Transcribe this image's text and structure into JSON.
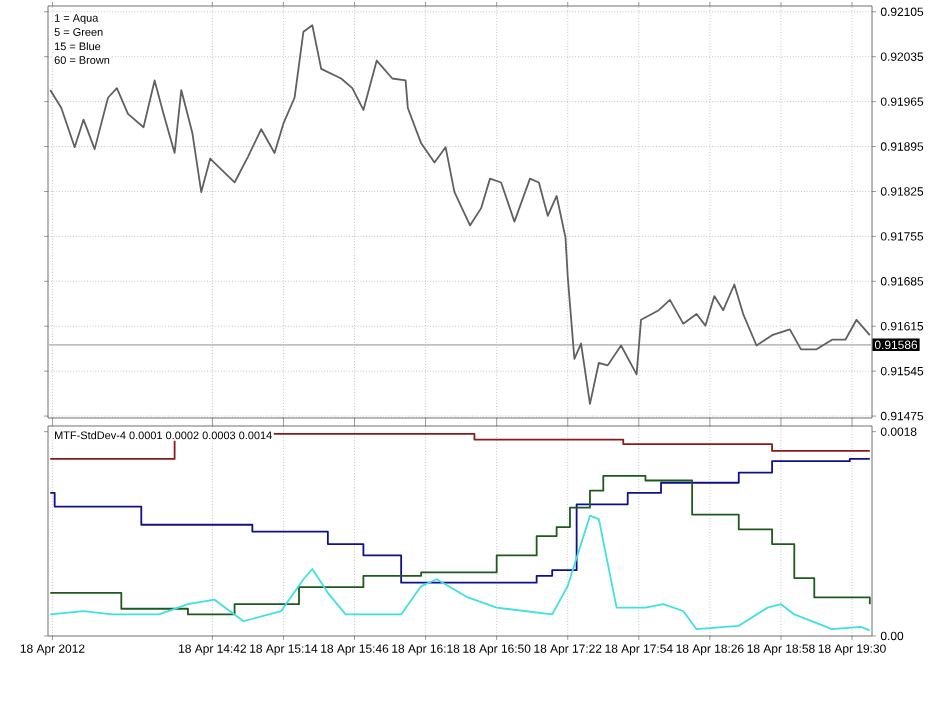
{
  "chart_data": [
    {
      "type": "line",
      "annotations": [
        "1 = Aqua",
        "5 = Green",
        "15 = Blue",
        "60 = Brown"
      ],
      "xlim": [
        "2012-04-18T13:28",
        "2012-04-18T19:39"
      ],
      "ylim": [
        0.91472,
        0.92114
      ],
      "xticks": [
        {
          "value": "2012-04-18T13:30",
          "label": null
        },
        {
          "value": "2012-04-18T14:42",
          "label": null
        },
        {
          "value": "2012-04-18T15:14",
          "label": null
        },
        {
          "value": "2012-04-18T15:46",
          "label": null
        },
        {
          "value": "2012-04-18T16:18",
          "label": null
        },
        {
          "value": "2012-04-18T16:50",
          "label": null
        },
        {
          "value": "2012-04-18T17:22",
          "label": null
        },
        {
          "value": "2012-04-18T17:54",
          "label": null
        },
        {
          "value": "2012-04-18T18:26",
          "label": null
        },
        {
          "value": "2012-04-18T18:58",
          "label": null
        },
        {
          "value": "2012-04-18T19:30",
          "label": null
        }
      ],
      "yticks": [
        0.92105,
        0.92035,
        0.91965,
        0.91895,
        0.91825,
        0.91755,
        0.91685,
        0.91615,
        0.91545,
        0.91475
      ],
      "tick_labels": "y",
      "grid": true,
      "ref_lines": [
        {
          "axis": "y",
          "value": 0.91586,
          "label": "0.91586",
          "color": "#c0c0c0"
        }
      ],
      "series": [
        {
          "color": "#606060",
          "x": [
            "2012-04-18T13:29",
            "2012-04-18T13:34",
            "2012-04-18T13:40",
            "2012-04-18T13:44",
            "2012-04-18T13:49",
            "2012-04-18T13:55",
            "2012-04-18T13:59",
            "2012-04-18T14:04",
            "2012-04-18T14:11",
            "2012-04-18T14:16",
            "2012-04-18T14:20",
            "2012-04-18T14:25",
            "2012-04-18T14:28",
            "2012-04-18T14:33",
            "2012-04-18T14:37",
            "2012-04-18T14:41",
            "2012-04-18T14:52",
            "2012-04-18T14:58",
            "2012-04-18T15:04",
            "2012-04-18T15:10",
            "2012-04-18T15:14",
            "2012-04-18T15:19",
            "2012-04-18T15:23",
            "2012-04-18T15:27",
            "2012-04-18T15:31",
            "2012-04-18T15:40",
            "2012-04-18T15:45",
            "2012-04-18T15:50",
            "2012-04-18T15:56",
            "2012-04-18T16:03",
            "2012-04-18T16:09",
            "2012-04-18T16:10",
            "2012-04-18T16:16",
            "2012-04-18T16:22",
            "2012-04-18T16:27",
            "2012-04-18T16:31",
            "2012-04-18T16:38",
            "2012-04-18T16:43",
            "2012-04-18T16:47",
            "2012-04-18T16:52",
            "2012-04-18T16:58",
            "2012-04-18T17:05",
            "2012-04-18T17:09",
            "2012-04-18T17:13",
            "2012-04-18T17:17",
            "2012-04-18T17:21",
            "2012-04-18T17:22",
            "2012-04-18T17:25",
            "2012-04-18T17:28",
            "2012-04-18T17:32",
            "2012-04-18T17:36",
            "2012-04-18T17:40",
            "2012-04-18T17:46",
            "2012-04-18T17:53",
            "2012-04-18T17:55",
            "2012-04-18T18:03",
            "2012-04-18T18:08",
            "2012-04-18T18:14",
            "2012-04-18T18:20",
            "2012-04-18T18:24",
            "2012-04-18T18:28",
            "2012-04-18T18:32",
            "2012-04-18T18:37",
            "2012-04-18T18:41",
            "2012-04-18T18:47",
            "2012-04-18T18:54",
            "2012-04-18T19:02",
            "2012-04-18T19:07",
            "2012-04-18T19:14",
            "2012-04-18T19:21",
            "2012-04-18T19:27",
            "2012-04-18T19:32",
            "2012-04-18T19:38"
          ],
          "values": [
            0.91983,
            0.91955,
            0.91894,
            0.91937,
            0.91891,
            0.91971,
            0.91986,
            0.91946,
            0.91925,
            0.91998,
            0.91946,
            0.91885,
            0.91983,
            0.91916,
            0.91824,
            0.91876,
            0.91839,
            0.91879,
            0.91922,
            0.91885,
            0.91931,
            0.91971,
            0.92074,
            0.92084,
            0.92016,
            0.92001,
            0.91986,
            0.91952,
            0.92029,
            0.92001,
            0.91998,
            0.91955,
            0.919,
            0.9187,
            0.91894,
            0.91824,
            0.91772,
            0.91799,
            0.91845,
            0.91839,
            0.91778,
            0.91845,
            0.91839,
            0.91787,
            0.91818,
            0.91753,
            0.91692,
            0.91564,
            0.91588,
            0.91494,
            0.91558,
            0.91554,
            0.91585,
            0.9154,
            0.91625,
            0.9164,
            0.91656,
            0.91619,
            0.91634,
            0.91616,
            0.91662,
            0.9164,
            0.9168,
            0.91634,
            0.91585,
            0.91601,
            0.9161,
            0.91579,
            0.91579,
            0.91594,
            0.91594,
            0.91625,
            0.91601
          ]
        }
      ]
    },
    {
      "type": "line",
      "annotations": [
        "MTF-StdDev-4 0.0001 0.0002 0.0003 0.0014"
      ],
      "xlim": [
        "2012-04-18T13:28",
        "2012-04-18T19:39"
      ],
      "ylim": [
        0,
        0.00185
      ],
      "xticks": [
        {
          "value": "2012-04-18T13:30",
          "label": "18 Apr 2012"
        },
        {
          "value": "2012-04-18T14:42",
          "label": "18 Apr 14:42"
        },
        {
          "value": "2012-04-18T15:14",
          "label": "18 Apr 15:14"
        },
        {
          "value": "2012-04-18T15:46",
          "label": "18 Apr 15:46"
        },
        {
          "value": "2012-04-18T16:18",
          "label": "18 Apr 16:18"
        },
        {
          "value": "2012-04-18T16:50",
          "label": "18 Apr 16:50"
        },
        {
          "value": "2012-04-18T17:22",
          "label": "18 Apr 17:22"
        },
        {
          "value": "2012-04-18T17:54",
          "label": "18 Apr 17:54"
        },
        {
          "value": "2012-04-18T18:26",
          "label": "18 Apr 18:26"
        },
        {
          "value": "2012-04-18T18:58",
          "label": "18 Apr 18:58"
        },
        {
          "value": "2012-04-18T19:30",
          "label": "18 Apr 19:30"
        }
      ],
      "yticks": [
        {
          "value": 0.0018,
          "label": "0.0018"
        },
        {
          "value": 0,
          "label": "0.00"
        }
      ],
      "grid": "x",
      "series": [
        {
          "type": "step",
          "color": "#8b1a1a",
          "x": [
            "2012-04-18T13:29",
            "2012-04-18T14:25",
            "2012-04-18T16:40",
            "2012-04-18T17:47",
            "2012-04-18T18:54",
            "2012-04-18T19:38"
          ],
          "values": [
            0.00156,
            0.00178,
            0.00173,
            0.00169,
            0.00163,
            0.00163
          ]
        },
        {
          "type": "step",
          "color": "#10108c",
          "x": [
            "2012-04-18T13:29",
            "2012-04-18T13:31",
            "2012-04-18T14:10",
            "2012-04-18T15:00",
            "2012-04-18T15:34",
            "2012-04-18T15:50",
            "2012-04-18T16:07",
            "2012-04-18T17:08",
            "2012-04-18T17:15",
            "2012-04-18T17:26",
            "2012-04-18T17:49",
            "2012-04-18T18:04",
            "2012-04-18T18:39",
            "2012-04-18T18:54",
            "2012-04-18T19:29",
            "2012-04-18T19:38"
          ],
          "values": [
            0.00126,
            0.00114,
            0.00098,
            0.00092,
            0.00081,
            0.00071,
            0.00047,
            0.00053,
            0.00058,
            0.00116,
            0.00126,
            0.00135,
            0.00144,
            0.00154,
            0.00156,
            0.00156
          ]
        },
        {
          "type": "step",
          "color": "#1e5a1e",
          "x": [
            "2012-04-18T13:29",
            "2012-04-18T14:01",
            "2012-04-18T14:31",
            "2012-04-18T14:52",
            "2012-04-18T15:21",
            "2012-04-18T15:50",
            "2012-04-18T16:16",
            "2012-04-18T16:50",
            "2012-04-18T17:08",
            "2012-04-18T17:17",
            "2012-04-18T17:23",
            "2012-04-18T17:32",
            "2012-04-18T17:38",
            "2012-04-18T17:57",
            "2012-04-18T18:18",
            "2012-04-18T18:39",
            "2012-04-18T18:54",
            "2012-04-18T19:04",
            "2012-04-18T19:13",
            "2012-04-18T19:38"
          ],
          "values": [
            0.00038,
            0.00024,
            0.00019,
            0.00028,
            0.00043,
            0.00053,
            0.00056,
            0.00071,
            0.00088,
            0.00096,
            0.00113,
            0.00128,
            0.00141,
            0.00137,
            0.00107,
            0.00094,
            0.00081,
            0.00051,
            0.00034,
            0.00028
          ]
        },
        {
          "type": "line",
          "color": "#40e0e0",
          "x": [
            "2012-04-18T13:29",
            "2012-04-18T13:44",
            "2012-04-18T13:57",
            "2012-04-18T14:18",
            "2012-04-18T14:31",
            "2012-04-18T14:43",
            "2012-04-18T14:56",
            "2012-04-18T15:13",
            "2012-04-18T15:23",
            "2012-04-18T15:27",
            "2012-04-18T15:34",
            "2012-04-18T15:42",
            "2012-04-18T16:07",
            "2012-04-18T16:16",
            "2012-04-18T16:23",
            "2012-04-18T16:37",
            "2012-04-18T16:50",
            "2012-04-18T17:15",
            "2012-04-18T17:22",
            "2012-04-18T17:32",
            "2012-04-18T17:36",
            "2012-04-18T17:44",
            "2012-04-18T17:57",
            "2012-04-18T18:05",
            "2012-04-18T18:14",
            "2012-04-18T18:20",
            "2012-04-18T18:39",
            "2012-04-18T18:52",
            "2012-04-18T18:58",
            "2012-04-18T19:04",
            "2012-04-18T19:21",
            "2012-04-18T19:34",
            "2012-04-18T19:38"
          ],
          "values": [
            0.00019,
            0.00022,
            0.00019,
            0.00019,
            0.00028,
            0.00032,
            0.00013,
            0.00022,
            0.0005,
            0.00059,
            0.00038,
            0.00019,
            0.00019,
            0.00044,
            0.0005,
            0.00034,
            0.00025,
            0.00019,
            0.00044,
            0.00106,
            0.00103,
            0.00025,
            0.00025,
            0.00028,
            0.00022,
            6e-05,
            9e-05,
            0.00025,
            0.00028,
            0.00019,
            6e-05,
            8e-05,
            5e-05
          ]
        }
      ]
    }
  ]
}
